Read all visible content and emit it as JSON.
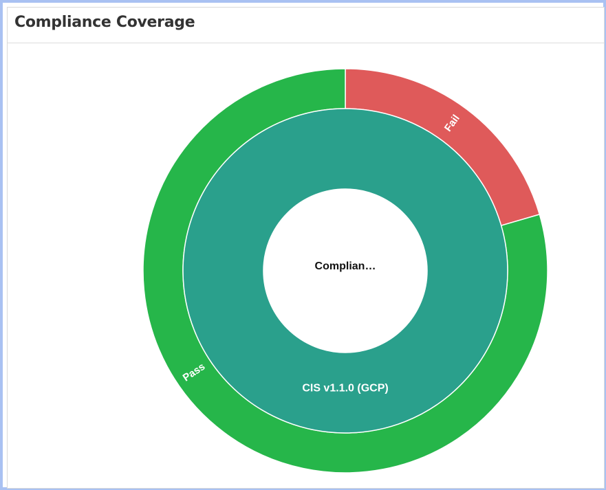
{
  "panel": {
    "title": "Compliance Coverage"
  },
  "chart_data": {
    "type": "sunburst",
    "center_label": "Complian…",
    "inner_ring": [
      {
        "name": "CIS v1.1.0 (GCP)",
        "value": 100,
        "color": "#2aa08c"
      }
    ],
    "outer_ring": [
      {
        "name": "Fail",
        "value": 20.5,
        "color": "#df5a5a"
      },
      {
        "name": "Pass",
        "value": 79.5,
        "color": "#26b64a"
      }
    ]
  }
}
